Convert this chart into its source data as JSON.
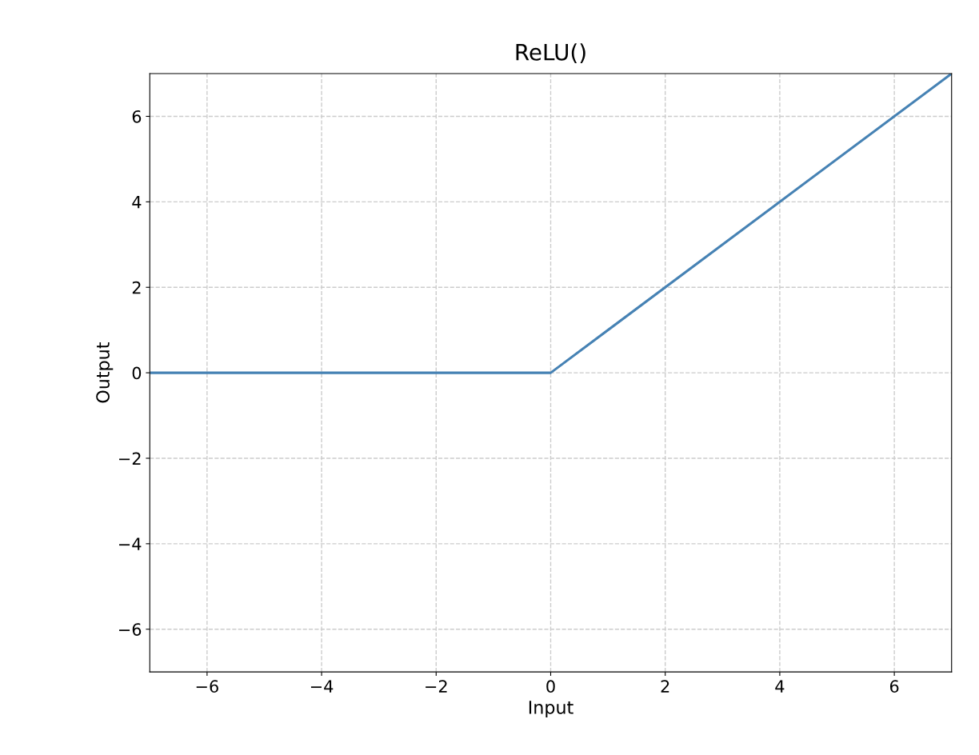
{
  "chart_data": {
    "type": "line",
    "title": "ReLU()",
    "xlabel": "Input",
    "ylabel": "Output",
    "x": [
      -7,
      0,
      7
    ],
    "series": [
      {
        "color": "#4682b4",
        "values": [
          0,
          0,
          7
        ]
      }
    ],
    "xlim": [
      -7,
      7
    ],
    "ylim": [
      -7,
      7
    ],
    "xticks": [
      -6,
      -4,
      -2,
      0,
      2,
      4,
      6
    ],
    "yticks": [
      -6,
      -4,
      -2,
      0,
      2,
      4,
      6
    ],
    "grid": true,
    "line_style": "solid",
    "marker": "none"
  }
}
